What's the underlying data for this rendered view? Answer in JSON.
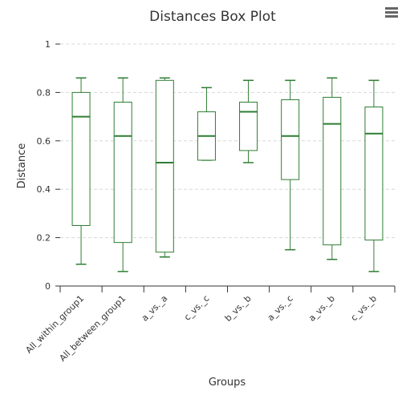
{
  "chart_data": {
    "type": "boxplot",
    "title": "Distances Box Plot",
    "xlabel": "Groups",
    "ylabel": "Distance",
    "ylim": [
      0,
      1
    ],
    "yticks": [
      0,
      0.2,
      0.4,
      0.6,
      0.8,
      1
    ],
    "ytick_labels": [
      "0",
      "0.2",
      "0.4",
      "0.6",
      "0.8",
      "1"
    ],
    "grid": true,
    "color": "#2e7d32",
    "categories": [
      "All_within_group1",
      "All_between_group1",
      "a_vs._a",
      "c_vs._c",
      "b_vs._b",
      "a_vs._c",
      "a_vs._b",
      "c_vs._b"
    ],
    "boxes": [
      {
        "low": 0.09,
        "q1": 0.25,
        "median": 0.7,
        "q3": 0.8,
        "high": 0.86
      },
      {
        "low": 0.06,
        "q1": 0.18,
        "median": 0.62,
        "q3": 0.76,
        "high": 0.86
      },
      {
        "low": 0.12,
        "q1": 0.14,
        "median": 0.51,
        "q3": 0.85,
        "high": 0.86
      },
      {
        "low": 0.52,
        "q1": 0.52,
        "median": 0.62,
        "q3": 0.72,
        "high": 0.82
      },
      {
        "low": 0.51,
        "q1": 0.56,
        "median": 0.72,
        "q3": 0.76,
        "high": 0.85
      },
      {
        "low": 0.15,
        "q1": 0.44,
        "median": 0.62,
        "q3": 0.77,
        "high": 0.85
      },
      {
        "low": 0.11,
        "q1": 0.17,
        "median": 0.67,
        "q3": 0.78,
        "high": 0.86
      },
      {
        "low": 0.06,
        "q1": 0.19,
        "median": 0.63,
        "q3": 0.74,
        "high": 0.85
      }
    ]
  },
  "menu": {
    "icon": "hamburger-menu-icon"
  }
}
